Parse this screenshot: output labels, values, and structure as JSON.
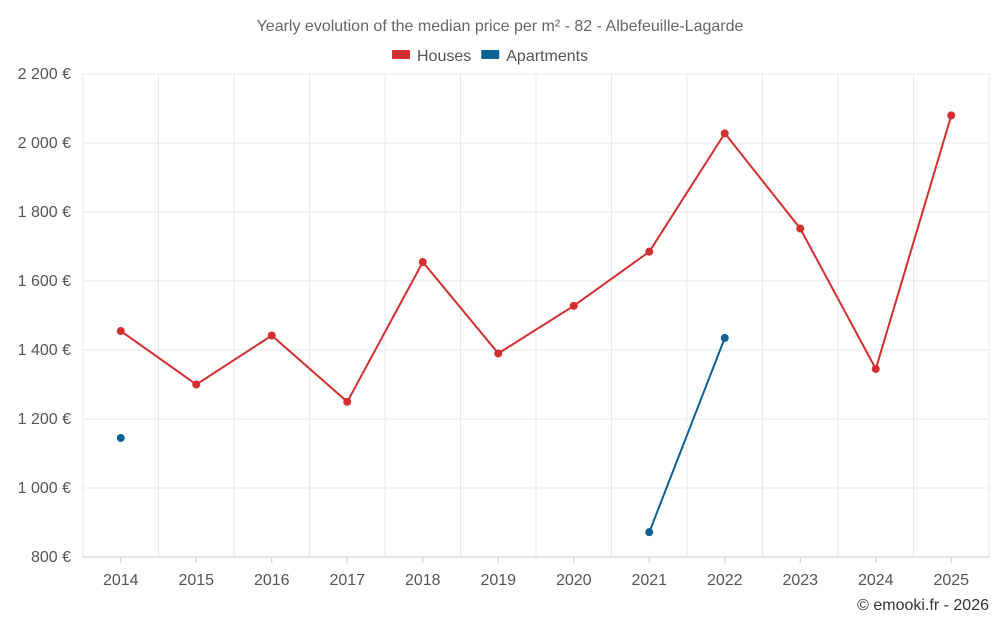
{
  "chart_data": {
    "type": "line",
    "title": "Yearly evolution of the median price per m² - 82 - Albefeuille-Lagarde",
    "xlabel": "",
    "ylabel": "",
    "categories": [
      "2014",
      "2015",
      "2016",
      "2017",
      "2018",
      "2019",
      "2020",
      "2021",
      "2022",
      "2023",
      "2024",
      "2025"
    ],
    "ylim": [
      800,
      2200
    ],
    "yticks": [
      800,
      1000,
      1200,
      1400,
      1600,
      1800,
      2000,
      2200
    ],
    "ytick_labels": [
      "800 €",
      "1 000 €",
      "1 200 €",
      "1 400 €",
      "1 600 €",
      "1 800 €",
      "2 000 €",
      "2 200 €"
    ],
    "grid": true,
    "legend_position": "top-center",
    "series": [
      {
        "name": "Houses",
        "color": "#d32f2f",
        "values": [
          1455,
          1300,
          1442,
          1250,
          1655,
          1390,
          1528,
          1685,
          2028,
          1752,
          1345,
          2080
        ]
      },
      {
        "name": "Apartments",
        "color": "#0d6194",
        "values": [
          1145,
          null,
          null,
          null,
          null,
          null,
          null,
          872,
          1435,
          null,
          null,
          null
        ]
      }
    ]
  },
  "credit": "© emooki.fr - 2026"
}
